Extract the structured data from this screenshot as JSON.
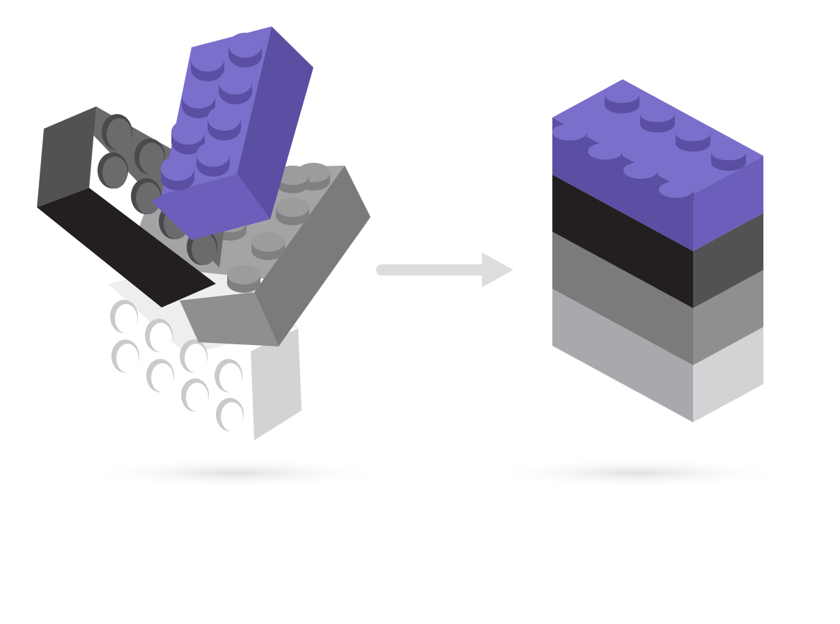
{
  "colors": {
    "purple_top": "#7a6fca",
    "purple_left": "#5b4fa3",
    "purple_right": "#6b5fbb",
    "black_front": "#231f20",
    "black_side": "#525254",
    "black_top": "#6b6b6d",
    "dark_gray_top": "#a3a4a6",
    "dark_gray_front": "#7b7b7c",
    "dark_gray_side": "#8e8f91",
    "light_gray_front": "#a8a9ac",
    "light_gray_side": "#d2d3d5",
    "white_stud": "#ffffff",
    "arrow": "#dcdddf",
    "shadow": "#e6e6e6"
  },
  "icons": {
    "scattered": "scattered-bricks-icon",
    "arrow": "arrow-right-icon",
    "stacked": "stacked-bricks-icon"
  }
}
